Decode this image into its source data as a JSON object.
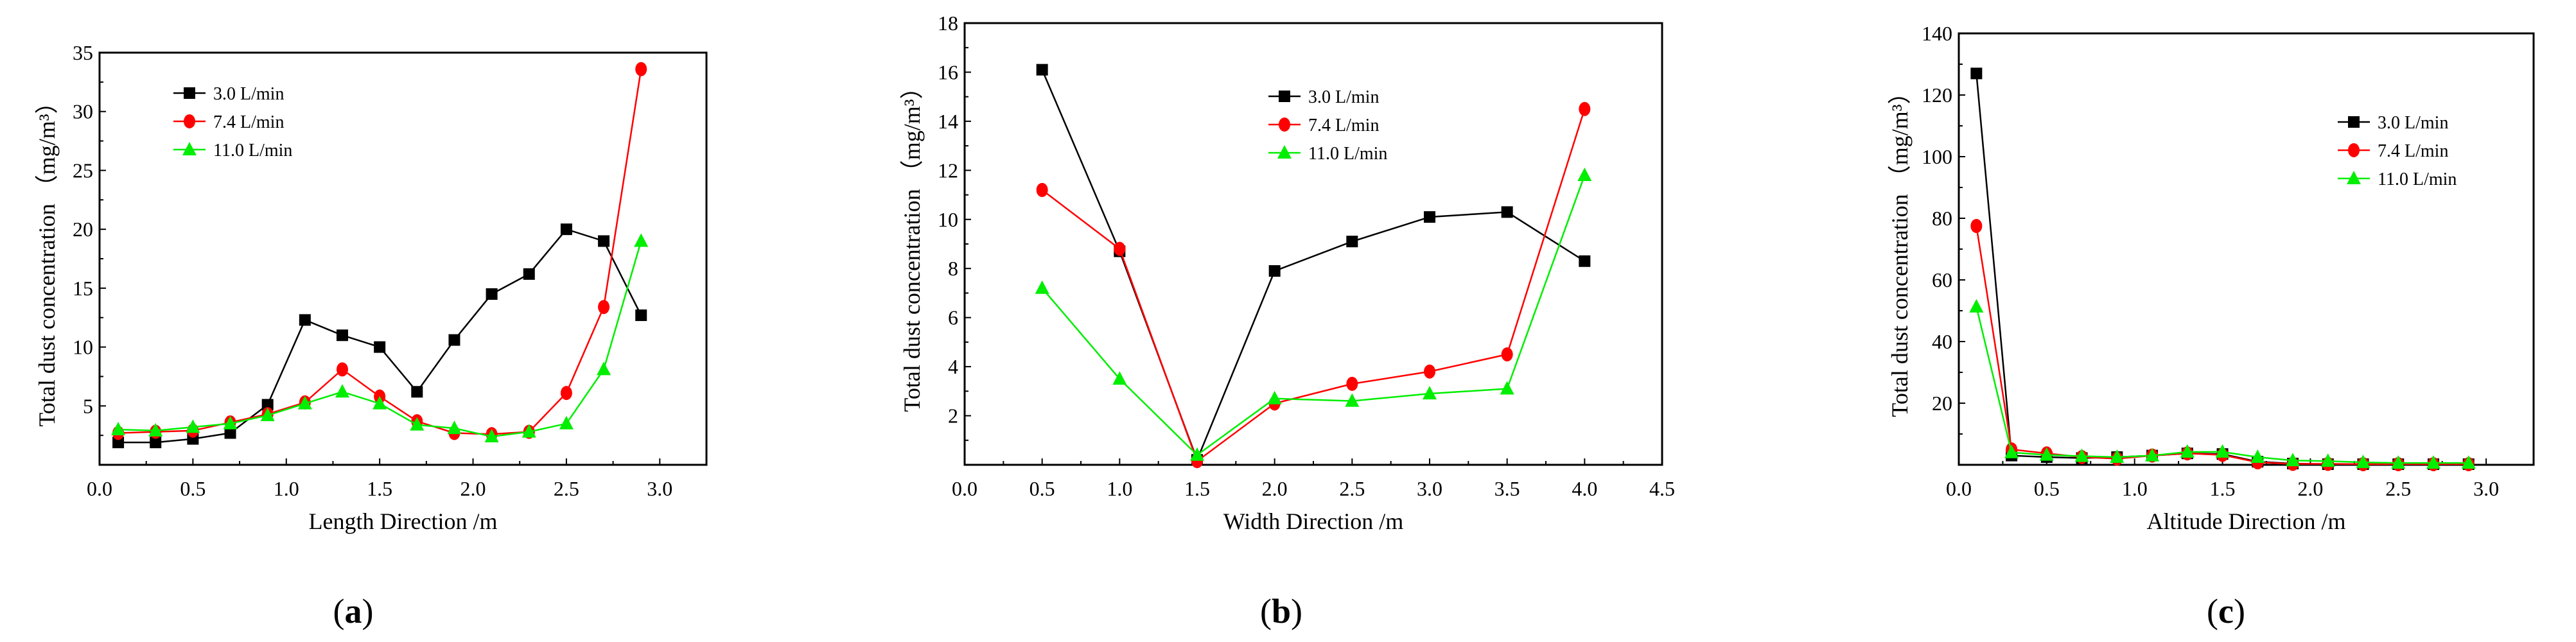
{
  "colors": {
    "s1": "#000000",
    "s2": "#ff0000",
    "s3": "#00ee00"
  },
  "chart_data": [
    {
      "type": "line",
      "panel_label": "a",
      "xlabel": "Length Direction  /m",
      "ylabel": "Total dust concentration  （mg/m³）",
      "xlim": [
        0,
        3.25
      ],
      "ylim": [
        0,
        35
      ],
      "xticks": [
        0.0,
        0.5,
        1.0,
        1.5,
        2.0,
        2.5,
        3.0
      ],
      "xtick_labels": [
        "0.0",
        "0.5",
        "1.0",
        "1.5",
        "2.0",
        "2.5",
        "3.0"
      ],
      "yticks": [
        5,
        10,
        15,
        20,
        25,
        30,
        35
      ],
      "ytick_labels": [
        "5",
        "10",
        "15",
        "20",
        "25",
        "30",
        "35"
      ],
      "legend_position": "upper-left",
      "x": [
        0.1,
        0.3,
        0.5,
        0.7,
        0.9,
        1.1,
        1.3,
        1.5,
        1.7,
        1.9,
        2.1,
        2.3,
        2.5,
        2.7,
        2.9
      ],
      "series": [
        {
          "name": "3.0 L/min",
          "marker": "square",
          "values": [
            1.9,
            1.9,
            2.2,
            2.7,
            5.1,
            12.3,
            11.0,
            10.0,
            6.2,
            10.6,
            14.5,
            16.2,
            20.0,
            19.0,
            12.7
          ]
        },
        {
          "name": "7.4 L/min",
          "marker": "circle",
          "values": [
            2.7,
            2.8,
            2.9,
            3.6,
            4.3,
            5.3,
            8.1,
            5.8,
            3.7,
            2.7,
            2.6,
            2.8,
            6.1,
            13.4,
            33.6
          ]
        },
        {
          "name": "11.0 L/min",
          "marker": "triangle",
          "values": [
            3.0,
            2.9,
            3.2,
            3.5,
            4.2,
            5.2,
            6.2,
            5.2,
            3.4,
            3.1,
            2.4,
            2.8,
            3.5,
            8.1,
            19.0
          ]
        }
      ]
    },
    {
      "type": "line",
      "panel_label": "b",
      "xlabel": "Width Direction /m",
      "ylabel": "Total dust concentration  （mg/m³）",
      "xlim": [
        0,
        4.5
      ],
      "ylim": [
        0,
        18
      ],
      "xticks": [
        0.0,
        0.5,
        1.0,
        1.5,
        2.0,
        2.5,
        3.0,
        3.5,
        4.0,
        4.5
      ],
      "xtick_labels": [
        "0.0",
        "0.5",
        "1.0",
        "1.5",
        "2.0",
        "2.5",
        "3.0",
        "3.5",
        "4.0",
        "4.5"
      ],
      "yticks": [
        2,
        4,
        6,
        8,
        10,
        12,
        14,
        16,
        18
      ],
      "ytick_labels": [
        "2",
        "4",
        "6",
        "8",
        "10",
        "12",
        "14",
        "16",
        "18"
      ],
      "legend_position": "upper-center",
      "x": [
        0.5,
        1.0,
        1.5,
        2.0,
        2.5,
        3.0,
        3.5,
        4.0
      ],
      "series": [
        {
          "name": "3.0 L/min",
          "marker": "square",
          "values": [
            16.1,
            8.7,
            0.2,
            7.9,
            9.1,
            10.1,
            10.3,
            8.3
          ]
        },
        {
          "name": "7.4 L/min",
          "marker": "circle",
          "values": [
            11.2,
            8.8,
            0.15,
            2.5,
            3.3,
            3.8,
            4.5,
            14.5
          ]
        },
        {
          "name": "11.0 L/min",
          "marker": "triangle",
          "values": [
            7.2,
            3.5,
            0.4,
            2.7,
            2.6,
            2.9,
            3.1,
            11.8
          ]
        }
      ]
    },
    {
      "type": "line",
      "panel_label": "c",
      "xlabel": "Altitude Direction  /m",
      "ylabel": "Total dust concentration  （mg/m³）",
      "xlim": [
        0,
        3.27
      ],
      "ylim": [
        0,
        140
      ],
      "xticks": [
        0.0,
        0.5,
        1.0,
        1.5,
        2.0,
        2.5,
        3.0
      ],
      "xtick_labels": [
        "0.0",
        "0.5",
        "1.0",
        "1.5",
        "2.0",
        "2.5",
        "3.0"
      ],
      "yticks": [
        20,
        40,
        60,
        80,
        100,
        120,
        140
      ],
      "ytick_labels": [
        "20",
        "40",
        "60",
        "80",
        "100",
        "120",
        "140"
      ],
      "legend_position": "upper-right",
      "x": [
        0.1,
        0.3,
        0.5,
        0.7,
        0.9,
        1.1,
        1.3,
        1.5,
        1.7,
        1.9,
        2.1,
        2.3,
        2.5,
        2.7,
        2.9
      ],
      "series": [
        {
          "name": "3.0 L/min",
          "marker": "square",
          "values": [
            127,
            3.0,
            2.5,
            2.2,
            2.5,
            3.0,
            3.7,
            3.5,
            1.0,
            0.4,
            0.2,
            0.2,
            0.2,
            0.2,
            0.2
          ]
        },
        {
          "name": "7.4 L/min",
          "marker": "circle",
          "values": [
            77.5,
            5.0,
            3.7,
            2.5,
            2.0,
            3.0,
            3.7,
            3.2,
            0.8,
            0.3,
            0.3,
            0.2,
            0.2,
            0.2,
            0.2
          ]
        },
        {
          "name": "11.0 L/min",
          "marker": "triangle",
          "values": [
            51.3,
            4.0,
            3.2,
            2.8,
            2.5,
            3.0,
            4.2,
            4.2,
            2.5,
            1.4,
            1.2,
            0.8,
            0.6,
            0.6,
            0.6
          ]
        }
      ]
    }
  ]
}
